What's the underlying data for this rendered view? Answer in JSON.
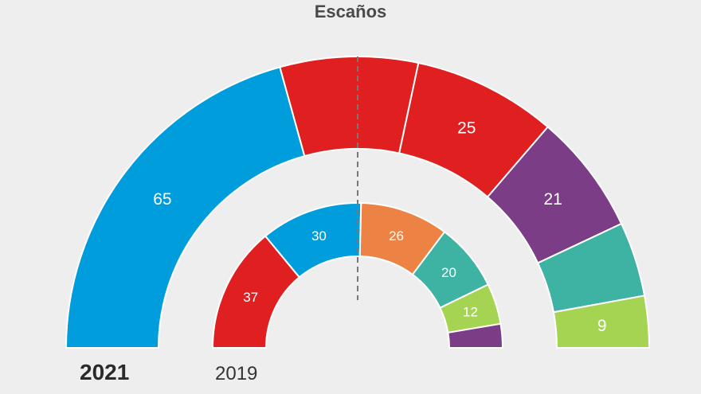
{
  "chart_data": {
    "type": "pie",
    "title": "Escaños",
    "rings": [
      {
        "year_label": "2021",
        "segments": [
          {
            "value": 65,
            "label": "65",
            "color": "#009ddc"
          },
          {
            "value": 24,
            "label": "",
            "color": "#e02020"
          },
          {
            "value": 25,
            "label": "25",
            "color": "#e02020"
          },
          {
            "value": 21,
            "label": "21",
            "color": "#7b3d85"
          },
          {
            "value": 13,
            "label": "",
            "color": "#3fb3a3"
          },
          {
            "value": 9,
            "label": "9",
            "color": "#a5d452"
          }
        ]
      },
      {
        "year_label": "2019",
        "segments": [
          {
            "value": 37,
            "label": "37",
            "color": "#e02020"
          },
          {
            "value": 30,
            "label": "30",
            "color": "#009ddc"
          },
          {
            "value": 26,
            "label": "26",
            "color": "#ec8244"
          },
          {
            "value": 20,
            "label": "20",
            "color": "#3fb3a3"
          },
          {
            "value": 12,
            "label": "12",
            "color": "#a5d452"
          },
          {
            "value": 7,
            "label": "",
            "color": "#7b3d85"
          }
        ]
      }
    ]
  }
}
